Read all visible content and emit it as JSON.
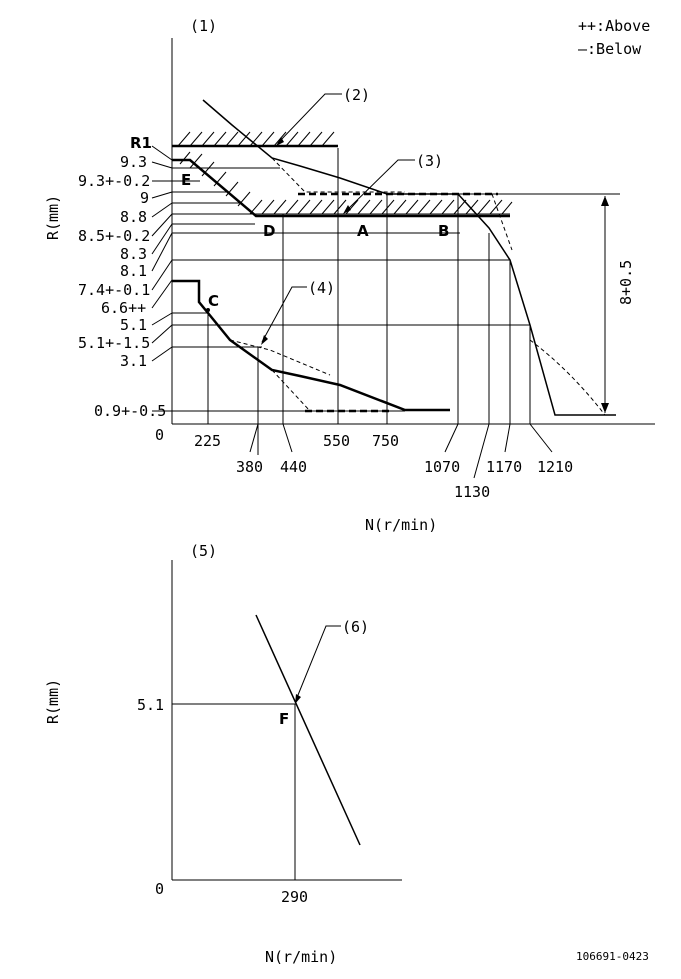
{
  "legend": {
    "above": "++:Above",
    "below": "—:Below"
  },
  "top_chart": {
    "marker": "(1)",
    "y_axis_label": "R(mm)",
    "x_axis_label": "N(r/min)",
    "origin": "0",
    "y_ticks": [
      "R1",
      "9.3",
      "9.3+-0.2",
      "9",
      "8.8",
      "8.5+-0.2",
      "8.3",
      "8.1",
      "7.4+-0.1",
      "6.6++",
      "5.1",
      "5.1+-1.5",
      "3.1",
      "0.9+-0.5"
    ],
    "x_ticks": [
      "225",
      "380",
      "440",
      "550",
      "750",
      "1070",
      "1130",
      "1170",
      "1210"
    ],
    "callouts": [
      "(2)",
      "(3)",
      "(4)"
    ],
    "points": [
      "E",
      "D",
      "A",
      "B",
      "C"
    ],
    "dimension": "8+0.5"
  },
  "bottom_chart": {
    "marker": "(5)",
    "y_axis_label": "R(mm)",
    "x_axis_label": "N(r/min)",
    "origin": "0",
    "y_tick": "5.1",
    "x_tick": "290",
    "callout": "(6)",
    "point": "F"
  },
  "doc_number": "106691-0423"
}
